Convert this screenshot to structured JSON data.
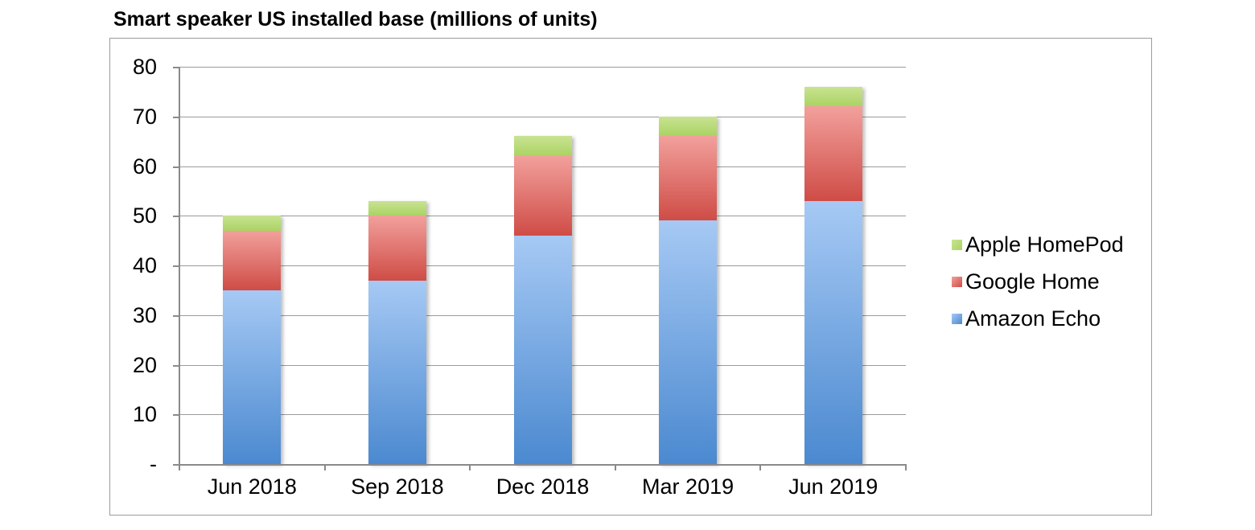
{
  "title": "Smart speaker US installed base (millions of units)",
  "chart_data": {
    "type": "bar",
    "variant": "stacked-vertical",
    "title": "Smart speaker US installed base (millions of units)",
    "categories": [
      "Jun 2018",
      "Sep 2018",
      "Dec 2018",
      "Mar 2019",
      "Jun 2019"
    ],
    "series": [
      {
        "name": "Amazon Echo",
        "values": [
          35,
          37,
          46,
          49,
          53
        ],
        "color_top": "#a6c9f4",
        "color_bottom": "#4b89d0"
      },
      {
        "name": "Google Home",
        "values": [
          12,
          13,
          16,
          17,
          19
        ],
        "color_top": "#f2a09c",
        "color_bottom": "#cf4c46"
      },
      {
        "name": "Apple HomePod",
        "values": [
          3,
          3,
          4,
          4,
          4
        ],
        "color_top": "#c9e392",
        "color_bottom": "#aad363"
      }
    ],
    "stack_totals": [
      50,
      53,
      66,
      70,
      76
    ],
    "xlabel": "",
    "ylabel": "",
    "ylim": [
      0,
      80
    ],
    "y_tick_step": 10,
    "y_tick_labels": [
      "-",
      "10",
      "20",
      "30",
      "40",
      "50",
      "60",
      "70",
      "80"
    ],
    "grid": "horizontal",
    "legend_position": "right",
    "legend_order": [
      "Apple HomePod",
      "Google Home",
      "Amazon Echo"
    ]
  },
  "colors": {
    "gridline": "#9b9b9b",
    "axis": "#8a8a8a",
    "frame_border": "#9c9c9c",
    "text": "#000000",
    "background": "#ffffff"
  }
}
